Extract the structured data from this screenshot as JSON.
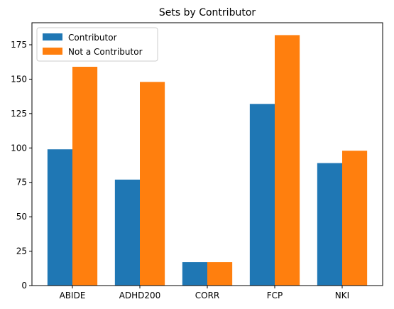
{
  "chart_data": {
    "type": "bar",
    "title": "Sets by Contributor",
    "xlabel": "",
    "ylabel": "",
    "categories": [
      "ABIDE",
      "ADHD200",
      "CORR",
      "FCP",
      "NKI"
    ],
    "series": [
      {
        "name": "Contributor",
        "values": [
          99,
          77,
          17,
          132,
          89
        ],
        "color": "#1f77b4"
      },
      {
        "name": "Not a Contributor",
        "values": [
          159,
          148,
          17,
          182,
          98
        ],
        "color": "#ff7f0e"
      }
    ],
    "ylim": [
      0,
      191
    ],
    "yticks": [
      0,
      25,
      50,
      75,
      100,
      125,
      150,
      175
    ],
    "legend_position": "top-left",
    "grid": false
  }
}
